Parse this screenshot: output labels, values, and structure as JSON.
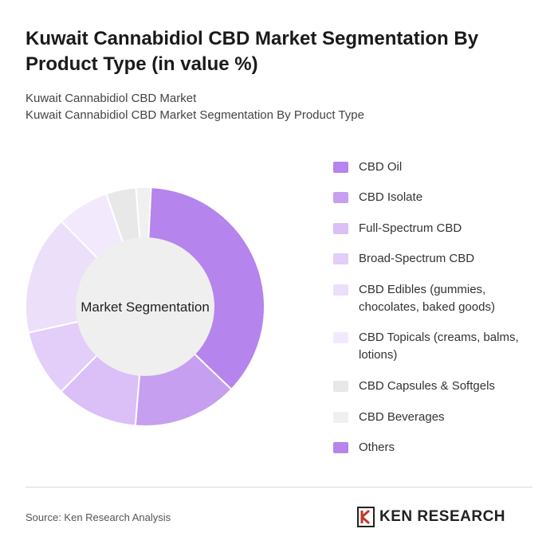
{
  "header": {
    "title": "Kuwait Cannabidiol CBD Market Segmentation By Product Type (in value %)",
    "subtitle_line1": "Kuwait Cannabidiol CBD Market",
    "subtitle_line2": "Kuwait Cannabidiol CBD Market Segmentation By Product Type"
  },
  "chart_data": {
    "type": "pie",
    "center_label": "Market Segmentation",
    "categories": [
      "CBD Oil",
      "CBD Isolate",
      "Full-Spectrum CBD",
      "Broad-Spectrum CBD",
      "CBD Edibles (gummies, chocolates, baked goods)",
      "CBD Topicals (creams, balms, lotions)",
      "CBD Capsules & Softgels",
      "CBD Beverages",
      "Others"
    ],
    "values": [
      36,
      14,
      11,
      9,
      16,
      7,
      4,
      2,
      0
    ],
    "colors": [
      "#b584ec",
      "#c69ff0",
      "#dac0f6",
      "#e2cef8",
      "#ecdffa",
      "#f2eafc",
      "#e8e8e8",
      "#f0f0f0",
      "#b584ec"
    ],
    "legend_position": "right"
  },
  "footer": {
    "source": "Source: Ken Research Analysis",
    "logo_text": "KEN RESEARCH"
  }
}
